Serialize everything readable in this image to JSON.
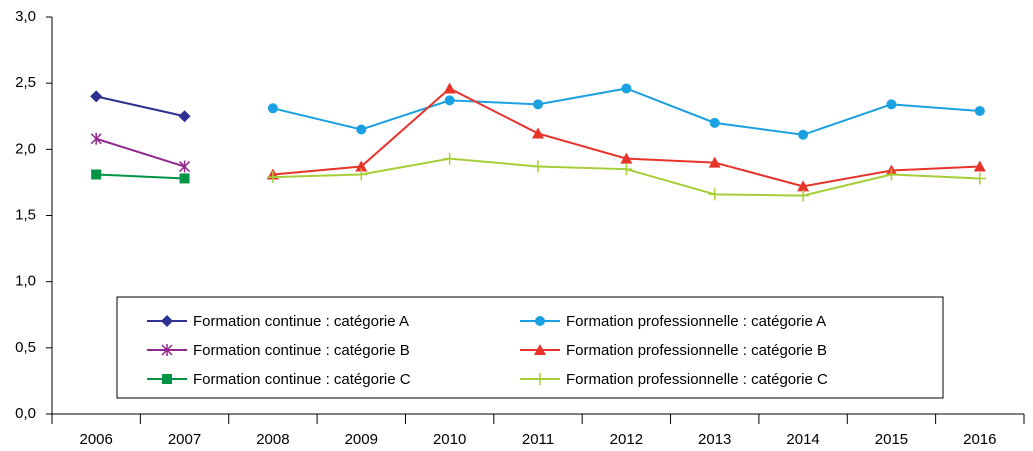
{
  "chart_data": {
    "type": "line",
    "categories": [
      "2006",
      "2007",
      "2008",
      "2009",
      "2010",
      "2011",
      "2012",
      "2013",
      "2014",
      "2015",
      "2016"
    ],
    "series": [
      {
        "name": "Formation continue : catégorie A",
        "color": "#2e3192",
        "marker": "diamond",
        "values": [
          2.4,
          2.25,
          null,
          null,
          null,
          null,
          null,
          null,
          null,
          null,
          null
        ]
      },
      {
        "name": "Formation continue : catégorie B",
        "color": "#92278f",
        "marker": "asterisk",
        "values": [
          2.08,
          1.87,
          null,
          null,
          null,
          null,
          null,
          null,
          null,
          null,
          null
        ]
      },
      {
        "name": "Formation continue : catégorie C",
        "color": "#009444",
        "marker": "square",
        "values": [
          1.81,
          1.78,
          null,
          null,
          null,
          null,
          null,
          null,
          null,
          null,
          null
        ]
      },
      {
        "name": "Formation professionnelle : catégorie A",
        "color": "#1ba1e2",
        "marker": "circle",
        "values": [
          null,
          null,
          2.31,
          2.15,
          2.37,
          2.34,
          2.46,
          2.2,
          2.11,
          2.34,
          2.29
        ]
      },
      {
        "name": "Formation professionnelle : catégorie B",
        "color": "#e8332a",
        "marker": "triangle",
        "values": [
          null,
          null,
          1.81,
          1.87,
          2.46,
          2.12,
          1.93,
          1.9,
          1.72,
          1.84,
          1.87
        ]
      },
      {
        "name": "Formation professionnelle : catégorie C",
        "color": "#a6ce39",
        "marker": "plus",
        "values": [
          null,
          null,
          1.79,
          1.81,
          1.93,
          1.87,
          1.85,
          1.66,
          1.65,
          1.81,
          1.78
        ]
      }
    ],
    "ylim": [
      0,
      3
    ],
    "yticks": [
      {
        "value": 0,
        "label": "0,0"
      },
      {
        "value": 0.5,
        "label": "0,5"
      },
      {
        "value": 1,
        "label": "1,0"
      },
      {
        "value": 1.5,
        "label": "1,5"
      },
      {
        "value": 2,
        "label": "2,0"
      },
      {
        "value": 2.5,
        "label": "2,5"
      },
      {
        "value": 3,
        "label": "3,0"
      }
    ],
    "grid": false
  }
}
